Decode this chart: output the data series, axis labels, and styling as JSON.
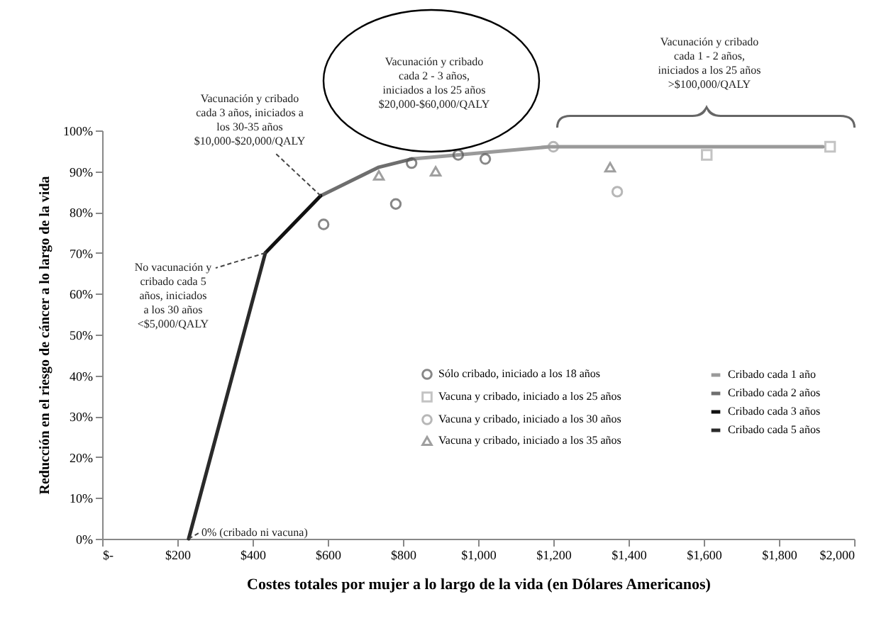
{
  "chart_data": {
    "type": "line",
    "xlabel": "Costes totales por mujer a lo largo de la vida (en Dólares Americanos)",
    "ylabel": "Reducción en el riesgo de cáncer a lo largo de la vida",
    "series": [
      {
        "name": "Cribado cada 1 año",
        "color": "#9a9a9a",
        "x": [
          823,
          947,
          1189,
          1917
        ],
        "values": [
          93,
          94,
          96,
          96
        ]
      },
      {
        "name": "Cribado cada 2 años",
        "color": "#6e6e6e",
        "x": [
          581,
          736,
          823
        ],
        "values": [
          84,
          91,
          93
        ]
      },
      {
        "name": "Cribado cada 3 años",
        "color": "#111111",
        "x": [
          434,
          581
        ],
        "values": [
          70,
          84
        ]
      },
      {
        "name": "Cribado cada 5 años",
        "color": "#2a2a2a",
        "x": [
          230,
          434
        ],
        "values": [
          0,
          70
        ]
      },
      {
        "name": "Sólo cribado, iniciado a los 18 años",
        "type": "scatter",
        "marker": "circle",
        "color": "#555555",
        "x": [
          589,
          781,
          823,
          947,
          1019
        ],
        "values": [
          77,
          82,
          92,
          94,
          93
        ]
      },
      {
        "name": "Vacuna y cribado, iniciado a los 25 años",
        "type": "scatter",
        "marker": "square",
        "color": "#aaaaaa",
        "x": [
          1608,
          1936
        ],
        "values": [
          94,
          96
        ]
      },
      {
        "name": "Vacuna y cribado, iniciado a los 30 años",
        "type": "scatter",
        "marker": "circle",
        "color": "#999999",
        "x": [
          1200,
          1370
        ],
        "values": [
          96,
          85
        ]
      },
      {
        "name": "Vacuna y cribado, iniciado a los 35 años",
        "type": "scatter",
        "marker": "triangle",
        "color": "#777777",
        "x": [
          736,
          887,
          1351
        ],
        "values": [
          89,
          90,
          91
        ]
      }
    ],
    "xlim": [
      0,
      2000
    ],
    "xticks": [
      {
        "value": 0,
        "label": "$-"
      },
      {
        "value": 200,
        "label": "$200"
      },
      {
        "value": 400,
        "label": "$400"
      },
      {
        "value": 600,
        "label": "$600"
      },
      {
        "value": 800,
        "label": "$800"
      },
      {
        "value": 1000,
        "label": "$1,000"
      },
      {
        "value": 1200,
        "label": "$1,200"
      },
      {
        "value": 1400,
        "label": "$1,400"
      },
      {
        "value": 1600,
        "label": "$1,600"
      },
      {
        "value": 1800,
        "label": "$1,800"
      },
      {
        "value": 2000,
        "label": "$2,000"
      }
    ],
    "ylim": [
      0,
      100
    ],
    "yticks": [
      {
        "value": 0,
        "label": "0%"
      },
      {
        "value": 10,
        "label": "10%"
      },
      {
        "value": 20,
        "label": "20%"
      },
      {
        "value": 30,
        "label": "30%"
      },
      {
        "value": 40,
        "label": "40%"
      },
      {
        "value": 50,
        "label": "50%"
      },
      {
        "value": 60,
        "label": "60%"
      },
      {
        "value": 70,
        "label": "70%"
      },
      {
        "value": 80,
        "label": "80%"
      },
      {
        "value": 90,
        "label": "90%"
      },
      {
        "value": 100,
        "label": "100%"
      }
    ],
    "grid": false,
    "legend": "bottom right",
    "annotations": [
      {
        "text": "Vacunación y cribado\ncada 3 años, iniciados a\nlos 30-35 años\n$10,000-$20,000/QALY",
        "x": 581,
        "y": 84
      },
      "Vacunación y cribado\ncada 2 - 3 años,\niniciados a los 25 años\n$20,000-$60,000/QALY",
      "Vacunación y cribado\ncada 1 - 2 años,\niniciados a los 25 años\n>$100,000/QALY",
      {
        "text": "No vacunación y\ncribado cada 5\naños, iniciados\na los 30 años\n<$5,000/QALY",
        "x": 434,
        "y": 70
      },
      {
        "text": "0% (cribado ni vacuna)",
        "x": 230,
        "y": 0
      }
    ]
  }
}
